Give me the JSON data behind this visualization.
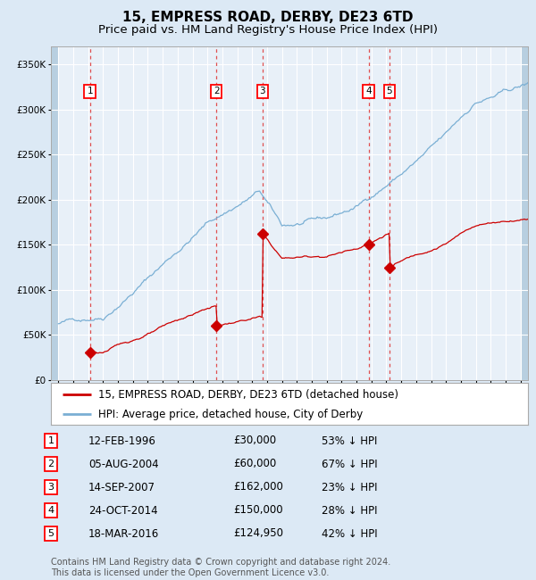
{
  "title": "15, EMPRESS ROAD, DERBY, DE23 6TD",
  "subtitle": "Price paid vs. HM Land Registry's House Price Index (HPI)",
  "footer": "Contains HM Land Registry data © Crown copyright and database right 2024.\nThis data is licensed under the Open Government Licence v3.0.",
  "legend_house": "15, EMPRESS ROAD, DERBY, DE23 6TD (detached house)",
  "legend_hpi": "HPI: Average price, detached house, City of Derby",
  "sales": [
    {
      "num": 1,
      "date_label": "12-FEB-1996",
      "date_x": 1996.12,
      "price": 30000,
      "price_str": "£30,000",
      "pct": "53% ↓ HPI"
    },
    {
      "num": 2,
      "date_label": "05-AUG-2004",
      "date_x": 2004.6,
      "price": 60000,
      "price_str": "£60,000",
      "pct": "67% ↓ HPI"
    },
    {
      "num": 3,
      "date_label": "14-SEP-2007",
      "date_x": 2007.7,
      "price": 162000,
      "price_str": "£162,000",
      "pct": "23% ↓ HPI"
    },
    {
      "num": 4,
      "date_label": "24-OCT-2014",
      "date_x": 2014.81,
      "price": 150000,
      "price_str": "£150,000",
      "pct": "28% ↓ HPI"
    },
    {
      "num": 5,
      "date_label": "18-MAR-2016",
      "date_x": 2016.21,
      "price": 124950,
      "price_str": "£124,950",
      "pct": "42% ↓ HPI"
    }
  ],
  "ylim": [
    0,
    370000
  ],
  "xlim": [
    1993.5,
    2025.5
  ],
  "background_color": "#dce9f5",
  "plot_bg": "#e8f0f8",
  "hatch_color": "#b8cfe0",
  "grid_color": "#ffffff",
  "hpi_color": "#7aafd4",
  "house_color": "#cc0000",
  "vline_color": "#e05050",
  "title_fontsize": 11,
  "subtitle_fontsize": 9.5,
  "tick_fontsize": 7.5,
  "legend_fontsize": 8.5,
  "table_fontsize": 8.5,
  "footer_fontsize": 7
}
